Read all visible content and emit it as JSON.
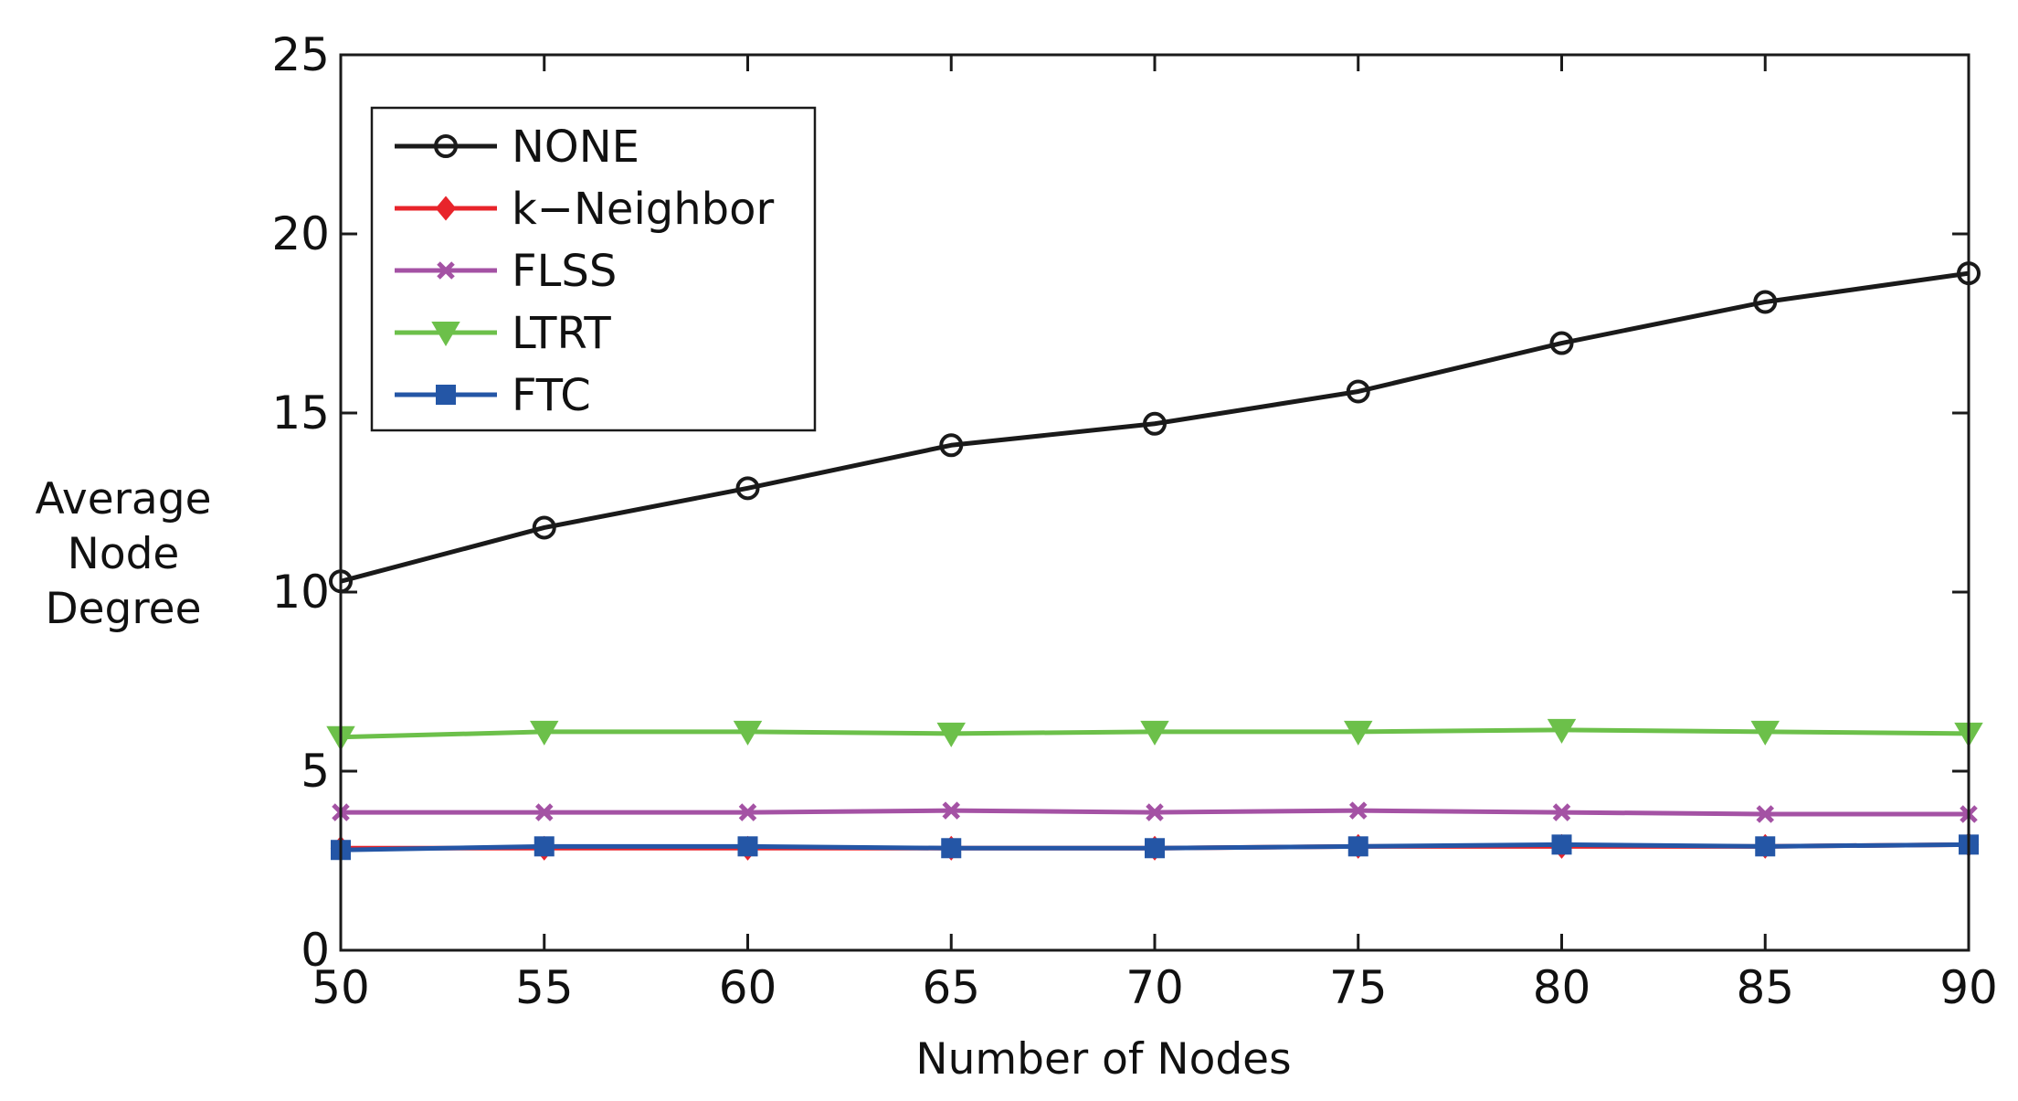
{
  "chart_data": {
    "type": "line",
    "title": "",
    "xlabel": "Number of Nodes",
    "ylabel_lines": [
      "Average",
      "Node",
      "Degree"
    ],
    "x": [
      50,
      55,
      60,
      65,
      70,
      75,
      80,
      85,
      90
    ],
    "xlim": [
      50,
      90
    ],
    "ylim": [
      0,
      25
    ],
    "xticks": [
      50,
      55,
      60,
      65,
      70,
      75,
      80,
      85,
      90
    ],
    "yticks": [
      0,
      5,
      10,
      15,
      20,
      25
    ],
    "grid": false,
    "legend_position": "top-left",
    "series": [
      {
        "name": "NONE",
        "color": "#1a1a1a",
        "marker": "circle",
        "values": [
          10.3,
          11.8,
          12.9,
          14.1,
          14.7,
          15.6,
          16.95,
          18.1,
          18.9
        ]
      },
      {
        "name": "k−Neighbor",
        "color": "#e8242b",
        "marker": "diamond",
        "values": [
          2.85,
          2.85,
          2.85,
          2.85,
          2.85,
          2.9,
          2.9,
          2.9,
          2.95
        ]
      },
      {
        "name": "FLSS",
        "color": "#a452a4",
        "marker": "x",
        "values": [
          3.85,
          3.85,
          3.85,
          3.9,
          3.85,
          3.9,
          3.85,
          3.8,
          3.8
        ]
      },
      {
        "name": "LTRT",
        "color": "#6cc04a",
        "marker": "triangle-down",
        "values": [
          5.95,
          6.1,
          6.1,
          6.05,
          6.1,
          6.1,
          6.15,
          6.1,
          6.05
        ]
      },
      {
        "name": "FTC",
        "color": "#2456a6",
        "marker": "square",
        "values": [
          2.8,
          2.9,
          2.9,
          2.85,
          2.85,
          2.9,
          2.95,
          2.9,
          2.95
        ]
      }
    ]
  }
}
